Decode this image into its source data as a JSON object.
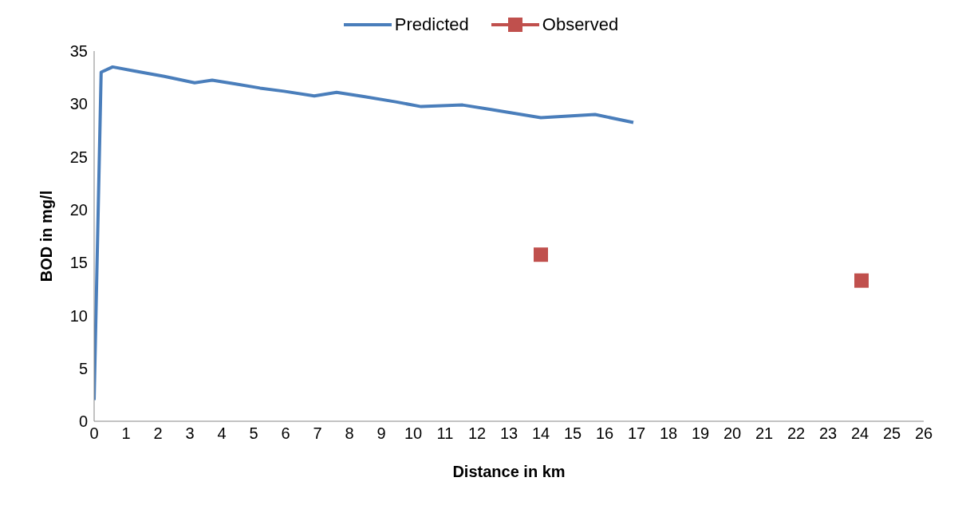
{
  "chart_data": {
    "type": "line",
    "xlabel": "Distance in km",
    "ylabel": "BOD in mg/l",
    "xlim": [
      0,
      26
    ],
    "xticks": [
      0,
      1,
      2,
      3,
      4,
      5,
      6,
      7,
      8,
      9,
      10,
      11,
      12,
      13,
      14,
      15,
      16,
      17,
      18,
      19,
      20,
      21,
      22,
      23,
      24,
      25,
      26
    ],
    "ylim": [
      0,
      35
    ],
    "yticks": [
      0,
      5,
      10,
      15,
      20,
      25,
      30,
      35
    ],
    "grid": false,
    "legend": "top",
    "series": [
      {
        "name": "Predicted",
        "color": "#4a7ebb",
        "marker": "none",
        "x": [
          0,
          0.22,
          0.58,
          1.3,
          2.2,
          3.15,
          3.7,
          4.4,
          5.2,
          5.95,
          6.9,
          7.6,
          8.45,
          9.45,
          10.25,
          11.55,
          12.4,
          13.2,
          14.0,
          15.7,
          16.9
        ],
        "values": [
          2,
          33.0,
          33.5,
          33.1,
          32.6,
          32.0,
          32.25,
          31.9,
          31.5,
          31.2,
          30.75,
          31.1,
          30.7,
          30.2,
          29.75,
          29.9,
          29.5,
          29.1,
          28.7,
          29.0,
          28.25
        ]
      },
      {
        "name": "Observed",
        "type": "scatter",
        "color": "#c0504d",
        "marker": "square",
        "x": [
          14.0,
          24.05
        ],
        "values": [
          15.75,
          13.3
        ]
      }
    ]
  }
}
